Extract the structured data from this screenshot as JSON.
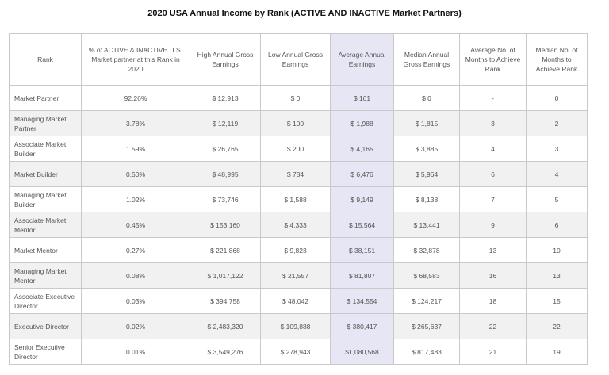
{
  "title": "2020 USA Annual Income by Rank (ACTIVE AND INACTIVE Market Partners)",
  "headers": [
    "Rank",
    "% of ACTIVE & INACTIVE U.S. Market partner at this Rank in 2020",
    "High Annual Gross Earnings",
    "Low Annual Gross Earnings",
    "Average Annual Earnings",
    "Median Annual Gross Earnings",
    "Average No. of Months to Achieve Rank",
    "Median No. of Months to Achieve Rank"
  ],
  "rows": [
    [
      "Market Partner",
      "92.26%",
      "$ 12,913",
      "$ 0",
      "$ 161",
      "$ 0",
      "-",
      "0"
    ],
    [
      "Managing Market Partner",
      "3.78%",
      "$ 12,119",
      "$ 100",
      "$ 1,988",
      "$ 1,815",
      "3",
      "2"
    ],
    [
      "Associate Market Builder",
      "1.59%",
      "$ 26,765",
      "$ 200",
      "$ 4,165",
      "$ 3,885",
      "4",
      "3"
    ],
    [
      "Market Builder",
      "0.50%",
      "$ 48,995",
      "$ 784",
      "$ 6,476",
      "$ 5,964",
      "6",
      "4"
    ],
    [
      "Managing Market Builder",
      "1.02%",
      "$ 73,746",
      "$ 1,588",
      "$ 9,149",
      "$ 8,138",
      "7",
      "5"
    ],
    [
      "Associate Market Mentor",
      "0.45%",
      "$ 153,160",
      "$ 4,333",
      "$ 15,564",
      "$ 13,441",
      "9",
      "6"
    ],
    [
      "Market Mentor",
      "0.27%",
      "$ 221,868",
      "$ 9,823",
      "$ 38,151",
      "$ 32,878",
      "13",
      "10"
    ],
    [
      "Managing Market Mentor",
      "0.08%",
      "$ 1,017,122",
      "$ 21,557",
      "$ 81,807",
      "$ 68,583",
      "16",
      "13"
    ],
    [
      "Associate Executive Director",
      "0.03%",
      "$ 394,758",
      "$ 48,042",
      "$ 134,554",
      "$ 124,217",
      "18",
      "15"
    ],
    [
      "Executive Director",
      "0.02%",
      "$ 2,483,320",
      "$ 109,888",
      "$ 380,417",
      "$ 265,637",
      "22",
      "22"
    ],
    [
      "Senior Executive Director",
      "0.01%",
      "$ 3,549,276",
      "$ 278,943",
      "$1,080,568",
      "$ 817,483",
      "21",
      "19"
    ]
  ]
}
